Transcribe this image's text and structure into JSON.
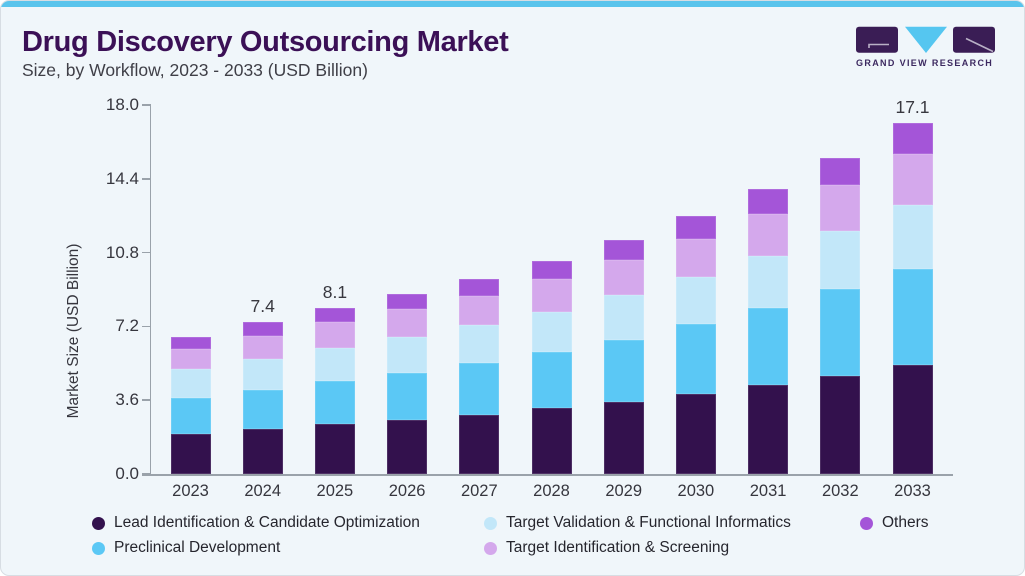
{
  "header": {
    "title": "Drug Discovery Outsourcing Market",
    "subtitle": "Size, by Workflow, 2023 - 2033 (USD Billion)",
    "logo_text": "GRAND VIEW RESEARCH"
  },
  "chart_data": {
    "type": "bar",
    "stacked": true,
    "title": "Drug Discovery Outsourcing Market Size, by Workflow, 2023 - 2033 (USD Billion)",
    "xlabel": "",
    "ylabel": "Market Size (USD Billion)",
    "ylim": [
      0,
      18
    ],
    "ytick_labels": [
      "0.0",
      "3.6",
      "7.2",
      "10.8",
      "14.4",
      "18.0"
    ],
    "grid": false,
    "legend_position": "bottom",
    "categories": [
      "2023",
      "2024",
      "2025",
      "2026",
      "2027",
      "2028",
      "2029",
      "2030",
      "2031",
      "2032",
      "2033"
    ],
    "series": [
      {
        "name": "Lead Identification & Candidate Optimization",
        "color": "#33114d",
        "values": [
          1.95,
          2.2,
          2.42,
          2.64,
          2.9,
          3.2,
          3.52,
          3.9,
          4.33,
          4.8,
          5.33
        ]
      },
      {
        "name": "Preclinical Development",
        "color": "#5bc8f5",
        "values": [
          1.75,
          1.92,
          2.1,
          2.3,
          2.5,
          2.76,
          3.04,
          3.4,
          3.78,
          4.22,
          4.68
        ]
      },
      {
        "name": "Target Validation & Functional Informatics",
        "color": "#c2e7f9",
        "values": [
          1.4,
          1.5,
          1.62,
          1.74,
          1.85,
          1.96,
          2.16,
          2.32,
          2.52,
          2.82,
          3.12
        ]
      },
      {
        "name": "Target Identification & Screening",
        "color": "#d4a8ec",
        "values": [
          1.0,
          1.13,
          1.26,
          1.36,
          1.45,
          1.58,
          1.7,
          1.86,
          2.07,
          2.26,
          2.5
        ]
      },
      {
        "name": "Others",
        "color": "#a455d8",
        "values": [
          0.6,
          0.65,
          0.7,
          0.76,
          0.8,
          0.9,
          0.98,
          1.12,
          1.2,
          1.3,
          1.47
        ]
      }
    ],
    "totals": [
      6.7,
      7.4,
      8.1,
      8.8,
      9.5,
      10.4,
      11.4,
      12.6,
      13.9,
      15.4,
      17.1
    ],
    "bar_value_labels": [
      "",
      "7.4",
      "8.1",
      "",
      "",
      "",
      "",
      "",
      "",
      "",
      "17.1"
    ]
  },
  "colors": {
    "accent_stripe": "#5ac4ec",
    "card_background": "#f0f6fa",
    "card_border": "#d7dde3",
    "title_text": "#3b1056",
    "subtitle_text": "#3f3f47",
    "axis_line": "#9aa2aa",
    "tick_text": "#36363e",
    "value_label_text": "#38383f",
    "legend_text": "#26262e",
    "logo_purple": "#3a1d55",
    "logo_blue": "#55c6f0",
    "logo_mark_line": "#b9b0c6",
    "logo_text_color": "#3c2960"
  }
}
